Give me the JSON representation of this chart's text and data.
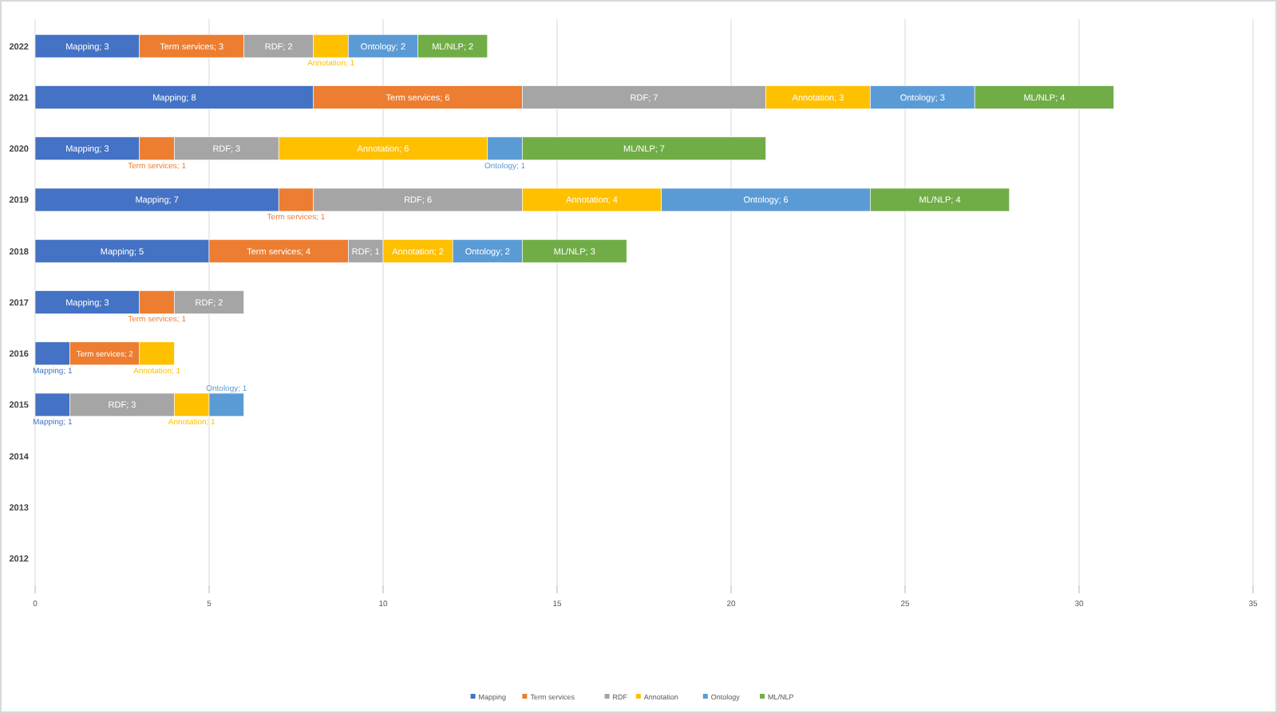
{
  "chart_data": {
    "type": "bar",
    "orientation": "horizontal",
    "stacked": true,
    "categories": [
      "2022",
      "2021",
      "2020",
      "2019",
      "2018",
      "2017",
      "2016",
      "2015",
      "2014",
      "2013",
      "2012"
    ],
    "xlim": [
      0,
      35
    ],
    "xticks": [
      0,
      5,
      10,
      15,
      20,
      25,
      30,
      35
    ],
    "grid": "x",
    "legend": "bottom",
    "series": [
      {
        "name": "Mapping",
        "color": "#4472c4",
        "values": [
          3,
          8,
          3,
          7,
          5,
          3,
          1,
          1,
          null,
          null,
          null
        ],
        "value_labels": [
          "Mapping; 3",
          "Mapping; 8",
          "Mapping; 3",
          "Mapping; 7",
          "Mapping; 5",
          "Mapping; 3",
          "Mapping; 1",
          "Mapping; 1",
          null,
          null,
          null
        ]
      },
      {
        "name": "Term services",
        "color": "#ed7d31",
        "values": [
          3,
          6,
          1,
          1,
          4,
          1,
          2,
          null,
          null,
          null,
          null
        ],
        "value_labels": [
          "Term services; 3",
          "Term services; 6",
          "Term services; 1",
          "Term services; 1",
          "Term services; 4",
          "Term services; 1",
          "Term services; 2",
          null,
          null,
          null,
          null
        ]
      },
      {
        "name": "RDF",
        "color": "#a5a5a5",
        "values": [
          2,
          7,
          3,
          6,
          1,
          2,
          null,
          3,
          null,
          null,
          null
        ],
        "value_labels": [
          "RDF; 2",
          "RDF; 7",
          "RDF; 3",
          "RDF; 6",
          "RDF; 1",
          "RDF; 2",
          null,
          "RDF; 3",
          null,
          null,
          null
        ]
      },
      {
        "name": "Annotation",
        "color": "#ffc000",
        "values": [
          1,
          3,
          6,
          4,
          2,
          null,
          1,
          1,
          null,
          null,
          null
        ],
        "value_labels": [
          "Annotation; 1",
          "Annotation; 3",
          "Annotation; 6",
          "Annotation; 4",
          "Annotation; 2",
          null,
          "Annotation; 1",
          "Annotation; 1",
          null,
          null,
          null
        ]
      },
      {
        "name": "Ontology",
        "color": "#5b9bd5",
        "values": [
          2,
          3,
          1,
          6,
          2,
          null,
          null,
          1,
          null,
          null,
          null
        ],
        "value_labels": [
          "Ontology; 2",
          "Ontology; 3",
          "Ontology; 1",
          "Ontology; 6",
          "Ontology; 2",
          null,
          null,
          "Ontology; 1",
          null,
          null,
          null
        ]
      },
      {
        "name": "ML/NLP",
        "color": "#70ad47",
        "values": [
          2,
          4,
          7,
          4,
          3,
          null,
          null,
          null,
          null,
          null,
          null
        ],
        "value_labels": [
          "ML/NLP; 2",
          "ML/NLP; 4",
          "ML/NLP; 7",
          "ML/NLP; 4",
          "ML/NLP; 3",
          null,
          null,
          null,
          null,
          null,
          null
        ]
      }
    ]
  }
}
